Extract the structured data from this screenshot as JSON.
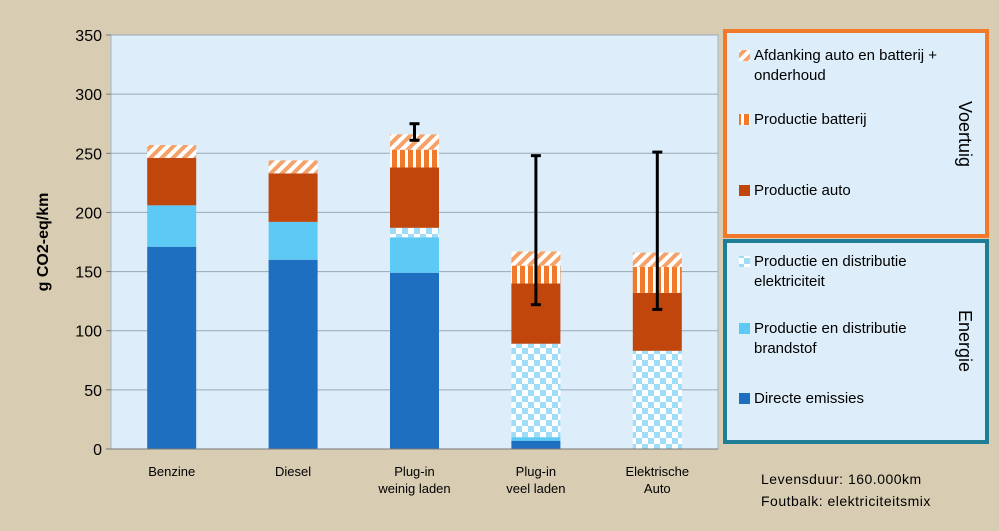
{
  "chart_data": {
    "type": "bar",
    "stacked": true,
    "ylabel": "g CO2-eq/km",
    "ylim": [
      0,
      350
    ],
    "yticks": [
      0,
      50,
      100,
      150,
      200,
      250,
      300,
      350
    ],
    "grid": true,
    "categories": [
      [
        "Benzine"
      ],
      [
        "Diesel"
      ],
      [
        "Plug-in",
        "weinig laden"
      ],
      [
        "Plug-in",
        "veel laden"
      ],
      [
        "Elektrische",
        "Auto"
      ]
    ],
    "series": [
      {
        "name": "Directe emissies",
        "color": "#1f6fc0",
        "pattern": "solid",
        "values": [
          171,
          160,
          149,
          7,
          0
        ]
      },
      {
        "name": "Productie en distributie brandstof",
        "color": "#5ccaf5",
        "pattern": "solid",
        "values": [
          35,
          32,
          30,
          3,
          0
        ]
      },
      {
        "name": "Productie en distributie elektriciteit",
        "color": "#5ccaf5",
        "pattern": "checker",
        "values": [
          0,
          0,
          8,
          79,
          83
        ]
      },
      {
        "name": "Productie auto",
        "color": "#c0460c",
        "pattern": "solid",
        "values": [
          40,
          41,
          51,
          51,
          49
        ]
      },
      {
        "name": "Productie batterij",
        "color": "#f07a2a",
        "pattern": "vstripe",
        "values": [
          0,
          0,
          15,
          15,
          22
        ]
      },
      {
        "name": "Afdanking auto en batterij + onderhoud",
        "color": "#f5a26a",
        "pattern": "diag",
        "values": [
          11,
          11,
          13,
          12,
          12
        ]
      }
    ],
    "error_bars": [
      null,
      null,
      [
        261,
        275
      ],
      [
        122,
        248
      ],
      [
        118,
        251
      ]
    ],
    "legend_groups": [
      {
        "title": "Voertuig",
        "border_color": "#f07a2a",
        "entries": [
          {
            "series": 5,
            "lines": [
              "Afdanking auto en batterij +",
              "onderhoud"
            ]
          },
          {
            "series": 4,
            "lines": [
              "Productie batterij"
            ]
          },
          {
            "series": 3,
            "lines": [
              "Productie auto"
            ]
          }
        ]
      },
      {
        "title": "Energie",
        "border_color": "#1f7e96",
        "entries": [
          {
            "series": 2,
            "lines": [
              "Productie en distributie",
              "elektriciteit"
            ]
          },
          {
            "series": 1,
            "lines": [
              "Productie en distributie",
              "brandstof"
            ]
          },
          {
            "series": 0,
            "lines": [
              "Directe emissies"
            ]
          }
        ]
      }
    ],
    "notes": [
      "Levensduur: 160.000km",
      "Foutbalk: elektriciteitsmix"
    ]
  }
}
